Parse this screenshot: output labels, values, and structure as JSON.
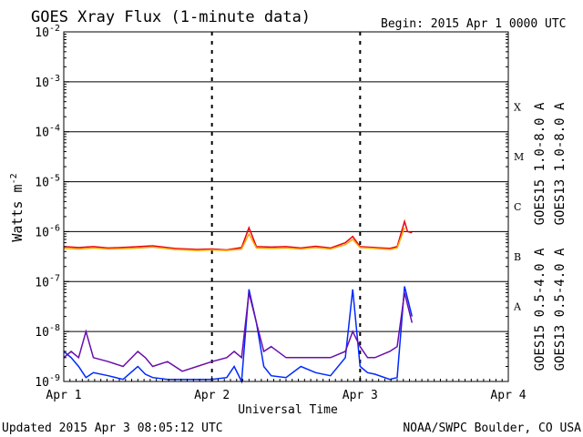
{
  "chart_data": {
    "type": "line",
    "title": "GOES Xray Flux (1-minute data)",
    "begin_label": "Begin:  2015 Apr 1 0000 UTC",
    "ylabel_base": "Watts m",
    "ylabel_exp": "-2",
    "xlabel": "Universal Time",
    "y_scale": "log",
    "ylim": [
      1e-09,
      0.01
    ],
    "y_ticks": [
      {
        "base": "10",
        "exp": "-9",
        "value": 1e-09
      },
      {
        "base": "10",
        "exp": "-8",
        "value": 1e-08
      },
      {
        "base": "10",
        "exp": "-7",
        "value": 1e-07
      },
      {
        "base": "10",
        "exp": "-6",
        "value": 1e-06
      },
      {
        "base": "10",
        "exp": "-5",
        "value": 1e-05
      },
      {
        "base": "10",
        "exp": "-4",
        "value": 0.0001
      },
      {
        "base": "10",
        "exp": "-3",
        "value": 0.001
      },
      {
        "base": "10",
        "exp": "-2",
        "value": 0.01
      }
    ],
    "x_ticks": [
      "Apr 1",
      "Apr 2",
      "Apr 3",
      "Apr 4"
    ],
    "xlim_days": [
      0,
      3
    ],
    "class_labels": [
      {
        "label": "A",
        "value": 3.16e-08
      },
      {
        "label": "B",
        "value": 3.16e-07
      },
      {
        "label": "C",
        "value": 3.16e-06
      },
      {
        "label": "M",
        "value": 3.16e-05
      },
      {
        "label": "X",
        "value": 0.000316
      }
    ],
    "grid": true,
    "legend_position": "right",
    "series": [
      {
        "name": "GOES15 1.0-8.0 A",
        "color": "#e8000b",
        "x": [
          0.0,
          0.1,
          0.2,
          0.3,
          0.45,
          0.6,
          0.75,
          0.9,
          1.0,
          1.1,
          1.2,
          1.25,
          1.3,
          1.4,
          1.5,
          1.6,
          1.7,
          1.8,
          1.9,
          1.95,
          2.0,
          2.1,
          2.2,
          2.25,
          2.3,
          2.32,
          2.35
        ],
        "y": [
          5e-07,
          4.8e-07,
          5e-07,
          4.7e-07,
          4.9e-07,
          5.2e-07,
          4.6e-07,
          4.4e-07,
          4.5e-07,
          4.3e-07,
          4.8e-07,
          1.2e-06,
          5e-07,
          4.9e-07,
          5e-07,
          4.7e-07,
          5.1e-07,
          4.7e-07,
          6e-07,
          8e-07,
          5e-07,
          4.8e-07,
          4.6e-07,
          5e-07,
          1.6e-06,
          1e-06,
          9.5e-07
        ]
      },
      {
        "name": "GOES13 1.0-8.0 A",
        "color": "#ffa500",
        "x": [
          0.0,
          0.1,
          0.2,
          0.3,
          0.45,
          0.6,
          0.75,
          0.9,
          1.0,
          1.1,
          1.2,
          1.25,
          1.3,
          1.4,
          1.5,
          1.6,
          1.7,
          1.8,
          1.9,
          1.95,
          2.0,
          2.1,
          2.2,
          2.25,
          2.3
        ],
        "y": [
          4.6e-07,
          4.5e-07,
          4.7e-07,
          4.5e-07,
          4.6e-07,
          4.9e-07,
          4.4e-07,
          4.2e-07,
          4.3e-07,
          4.2e-07,
          4.5e-07,
          9e-07,
          4.7e-07,
          4.6e-07,
          4.7e-07,
          4.5e-07,
          4.8e-07,
          4.5e-07,
          5.5e-07,
          7e-07,
          4.8e-07,
          4.6e-07,
          4.4e-07,
          4.7e-07,
          1.2e-06
        ]
      },
      {
        "name": "GOES15 0.5-4.0 A",
        "color": "#0028ff",
        "x": [
          0.0,
          0.05,
          0.1,
          0.15,
          0.2,
          0.3,
          0.4,
          0.5,
          0.55,
          0.6,
          0.7,
          0.8,
          0.9,
          1.0,
          1.1,
          1.15,
          1.2,
          1.25,
          1.3,
          1.35,
          1.4,
          1.5,
          1.6,
          1.7,
          1.8,
          1.9,
          1.95,
          2.0,
          2.05,
          2.1,
          2.2,
          2.25,
          2.3,
          2.35
        ],
        "y": [
          4e-09,
          3e-09,
          2e-09,
          1.2e-09,
          1.5e-09,
          1.3e-09,
          1.1e-09,
          2e-09,
          1.4e-09,
          1.2e-09,
          1.1e-09,
          1.1e-09,
          1.1e-09,
          1.1e-09,
          1.2e-09,
          2e-09,
          1e-09,
          7e-08,
          1.5e-08,
          2e-09,
          1.3e-09,
          1.2e-09,
          2e-09,
          1.5e-09,
          1.3e-09,
          3e-09,
          7e-08,
          2e-09,
          1.5e-09,
          1.4e-09,
          1.1e-09,
          1.2e-09,
          8e-08,
          2e-08
        ]
      },
      {
        "name": "GOES13 0.5-4.0 A",
        "color": "#6a0dad",
        "x": [
          0.0,
          0.05,
          0.1,
          0.15,
          0.2,
          0.3,
          0.4,
          0.5,
          0.55,
          0.6,
          0.7,
          0.8,
          0.9,
          1.0,
          1.1,
          1.15,
          1.2,
          1.25,
          1.3,
          1.35,
          1.4,
          1.5,
          1.6,
          1.7,
          1.8,
          1.9,
          1.95,
          2.0,
          2.05,
          2.1,
          2.2,
          2.25,
          2.3,
          2.35
        ],
        "y": [
          3e-09,
          4e-09,
          3e-09,
          1e-08,
          3e-09,
          2.5e-09,
          2e-09,
          4e-09,
          3e-09,
          2e-09,
          2.5e-09,
          1.6e-09,
          2e-09,
          2.5e-09,
          3e-09,
          4e-09,
          3e-09,
          6e-08,
          1.5e-08,
          4e-09,
          5e-09,
          3e-09,
          3e-09,
          3e-09,
          3e-09,
          4e-09,
          1e-08,
          5e-09,
          3e-09,
          3e-09,
          4e-09,
          5e-09,
          6e-08,
          1.5e-08
        ]
      }
    ]
  },
  "footer": {
    "updated": "Updated 2015 Apr  3 08:05:12 UTC",
    "source": "NOAA/SWPC Boulder, CO USA"
  }
}
